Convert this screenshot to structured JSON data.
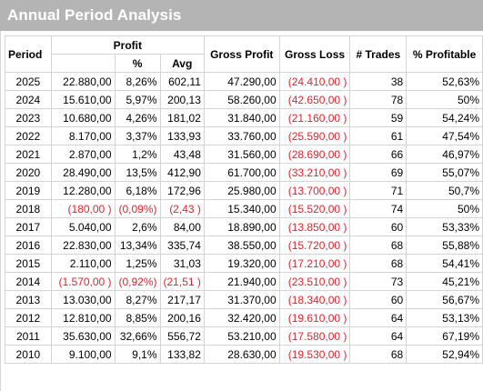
{
  "window": {
    "title": "Annual Period Analysis"
  },
  "colors": {
    "title_bar_bg": "#b4b4b4",
    "negative_text": "#e0242b",
    "grid_line": "#d4d4d4"
  },
  "table": {
    "headers": {
      "period": "Period",
      "profit": "Profit",
      "profit_pct": "%",
      "profit_avg": "Avg",
      "gross_profit": "Gross Profit",
      "gross_loss": "Gross Loss",
      "trades": "# Trades",
      "pct_profitable": "% Profitable"
    },
    "rows": [
      {
        "period": "2025",
        "profit": "22.880,00",
        "pct": "8,26%",
        "avg": "602,11",
        "gross_profit": "47.290,00",
        "gross_loss": "(24.410,00 )",
        "trades": "38",
        "pct_profitable": "52,63%",
        "neg": false
      },
      {
        "period": "2024",
        "profit": "15.610,00",
        "pct": "5,97%",
        "avg": "200,13",
        "gross_profit": "58.260,00",
        "gross_loss": "(42.650,00 )",
        "trades": "78",
        "pct_profitable": "50%",
        "neg": false
      },
      {
        "period": "2023",
        "profit": "10.680,00",
        "pct": "4,26%",
        "avg": "181,02",
        "gross_profit": "31.840,00",
        "gross_loss": "(21.160,00 )",
        "trades": "59",
        "pct_profitable": "54,24%",
        "neg": false
      },
      {
        "period": "2022",
        "profit": "8.170,00",
        "pct": "3,37%",
        "avg": "133,93",
        "gross_profit": "33.760,00",
        "gross_loss": "(25.590,00 )",
        "trades": "61",
        "pct_profitable": "47,54%",
        "neg": false
      },
      {
        "period": "2021",
        "profit": "2.870,00",
        "pct": "1,2%",
        "avg": "43,48",
        "gross_profit": "31.560,00",
        "gross_loss": "(28.690,00 )",
        "trades": "66",
        "pct_profitable": "46,97%",
        "neg": false
      },
      {
        "period": "2020",
        "profit": "28.490,00",
        "pct": "13,5%",
        "avg": "412,90",
        "gross_profit": "61.700,00",
        "gross_loss": "(33.210,00 )",
        "trades": "69",
        "pct_profitable": "55,07%",
        "neg": false
      },
      {
        "period": "2019",
        "profit": "12.280,00",
        "pct": "6,18%",
        "avg": "172,96",
        "gross_profit": "25.980,00",
        "gross_loss": "(13.700,00 )",
        "trades": "71",
        "pct_profitable": "50,7%",
        "neg": false
      },
      {
        "period": "2018",
        "profit": "(180,00 )",
        "pct": "(0,09%)",
        "avg": "(2,43 )",
        "gross_profit": "15.340,00",
        "gross_loss": "(15.520,00 )",
        "trades": "74",
        "pct_profitable": "50%",
        "neg": true
      },
      {
        "period": "2017",
        "profit": "5.040,00",
        "pct": "2,6%",
        "avg": "84,00",
        "gross_profit": "18.890,00",
        "gross_loss": "(13.850,00 )",
        "trades": "60",
        "pct_profitable": "53,33%",
        "neg": false
      },
      {
        "period": "2016",
        "profit": "22.830,00",
        "pct": "13,34%",
        "avg": "335,74",
        "gross_profit": "38.550,00",
        "gross_loss": "(15.720,00 )",
        "trades": "68",
        "pct_profitable": "55,88%",
        "neg": false
      },
      {
        "period": "2015",
        "profit": "2.110,00",
        "pct": "1,25%",
        "avg": "31,03",
        "gross_profit": "19.320,00",
        "gross_loss": "(17.210,00 )",
        "trades": "68",
        "pct_profitable": "54,41%",
        "neg": false
      },
      {
        "period": "2014",
        "profit": "(1.570,00 )",
        "pct": "(0,92%)",
        "avg": "(21,51 )",
        "gross_profit": "21.940,00",
        "gross_loss": "(23.510,00 )",
        "trades": "73",
        "pct_profitable": "45,21%",
        "neg": true
      },
      {
        "period": "2013",
        "profit": "13.030,00",
        "pct": "8,27%",
        "avg": "217,17",
        "gross_profit": "31.370,00",
        "gross_loss": "(18.340,00 )",
        "trades": "60",
        "pct_profitable": "56,67%",
        "neg": false
      },
      {
        "period": "2012",
        "profit": "12.810,00",
        "pct": "8,85%",
        "avg": "200,16",
        "gross_profit": "32.420,00",
        "gross_loss": "(19.610,00 )",
        "trades": "64",
        "pct_profitable": "53,13%",
        "neg": false
      },
      {
        "period": "2011",
        "profit": "35.630,00",
        "pct": "32,66%",
        "avg": "556,72",
        "gross_profit": "53.210,00",
        "gross_loss": "(17.580,00 )",
        "trades": "64",
        "pct_profitable": "67,19%",
        "neg": false
      },
      {
        "period": "2010",
        "profit": "9.100,00",
        "pct": "9,1%",
        "avg": "133,82",
        "gross_profit": "28.630,00",
        "gross_loss": "(19.530,00 )",
        "trades": "68",
        "pct_profitable": "52,94%",
        "neg": false
      }
    ]
  }
}
